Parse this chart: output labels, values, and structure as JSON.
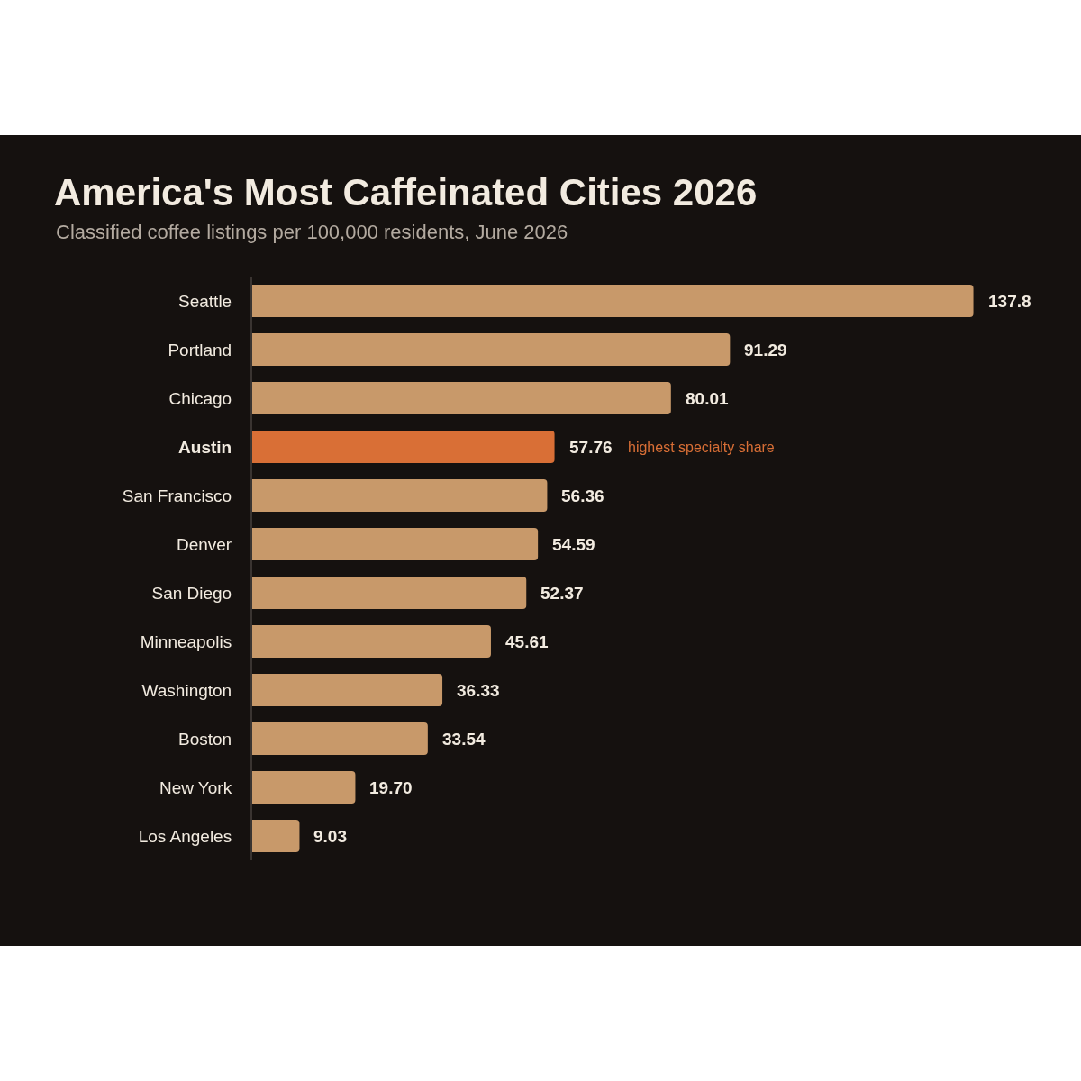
{
  "chart_data": {
    "type": "bar",
    "orientation": "horizontal",
    "title": "America's Most Caffeinated Cities 2026",
    "subtitle": "Classified coffee listings per 100,000 residents, June 2026",
    "categories": [
      "Seattle",
      "Portland",
      "Chicago",
      "Austin",
      "San Francisco",
      "Denver",
      "San Diego",
      "Minneapolis",
      "Washington",
      "Boston",
      "New York",
      "Los Angeles"
    ],
    "values": [
      137.8,
      91.29,
      80.01,
      57.76,
      56.36,
      54.59,
      52.37,
      45.61,
      36.33,
      33.54,
      19.7,
      9.03
    ],
    "colors": [
      "#c8996a",
      "#c8996a",
      "#c8996a",
      "#d96f36",
      "#c8996a",
      "#c8996a",
      "#c8996a",
      "#c8996a",
      "#c8996a",
      "#c8996a",
      "#c8996a",
      "#c8996a"
    ],
    "value_labels": [
      "137.8",
      "91.29",
      "80.01",
      "57.76",
      "56.36",
      "54.59",
      "52.37",
      "45.61",
      "36.33",
      "33.54",
      "19.70",
      "9.03"
    ],
    "annotations": [
      "highest specialty share"
    ],
    "tick_labels": "y"
  }
}
